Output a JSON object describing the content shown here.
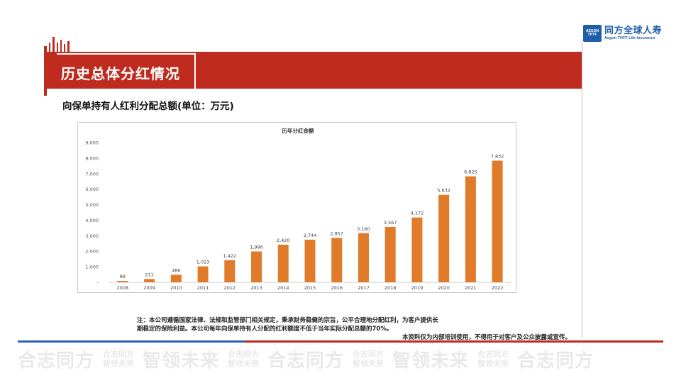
{
  "logo": {
    "badge_line1": "AEGON",
    "badge_line2": "THTF",
    "name_cn": "同方全球人寿",
    "name_en": "Aegon THTF Life Insurance"
  },
  "header": {
    "title": "历史总体分红情况"
  },
  "subtitle": "向保单持有人红利分配总额(单位：万元)",
  "colors": {
    "accent": "#bf2b1f",
    "bar": "#e07b2a",
    "blue": "#2b63b0"
  },
  "chart_data": {
    "type": "bar",
    "title": "历年分红金额",
    "categories": [
      "2008",
      "2009",
      "2010",
      "2011",
      "2012",
      "2013",
      "2014",
      "2015",
      "2016",
      "2017",
      "2018",
      "2019",
      "2020",
      "2021",
      "2022"
    ],
    "values": [
      88,
      211,
      486,
      1023,
      1422,
      1986,
      2420,
      2744,
      2857,
      3160,
      3567,
      4172,
      5632,
      6825,
      7832
    ],
    "value_labels": [
      "88",
      "211",
      "486",
      "1,023",
      "1,422",
      "1,986",
      "2,420",
      "2,744",
      "2,857",
      "3,160",
      "3,567",
      "4,172",
      "5,632",
      "6,825",
      "7,832"
    ],
    "ylim": [
      0,
      9000
    ],
    "yticks": [
      0,
      1000,
      2000,
      3000,
      4000,
      5000,
      6000,
      7000,
      8000,
      9000
    ],
    "ytick_labels": [
      "-",
      "1,000",
      "2,000",
      "3,000",
      "4,000",
      "5,000",
      "6,000",
      "7,000",
      "8,000",
      "9,000"
    ],
    "grid": false,
    "legend": "none"
  },
  "footer": {
    "note_line1": "注：本公司遵循国家法律、法规和监管部门相关规定，秉承财务稳健的宗旨，公平合理地分配红利，为客户提供长",
    "note_line2": "期稳定的保险利益。本公司每年向保单持有人分配的红利额度不低于当年实际分配总额的70%。",
    "disclaimer": "本资料仅为内部培训使用，不得用于对客户及公众披露或宣传。"
  },
  "watermark": {
    "big1": "合志同方",
    "small1a": "合志同方",
    "small1b": "智领未来",
    "big2": "智领未来",
    "small2a": "合志同方",
    "small2b": "智领未来",
    "big3": "合志同方",
    "small3a": "合志同方",
    "small3b": "智领未来",
    "big4": "智领未来",
    "small4a": "合志同方",
    "small4b": "智领未来",
    "big5": "合志同方"
  }
}
